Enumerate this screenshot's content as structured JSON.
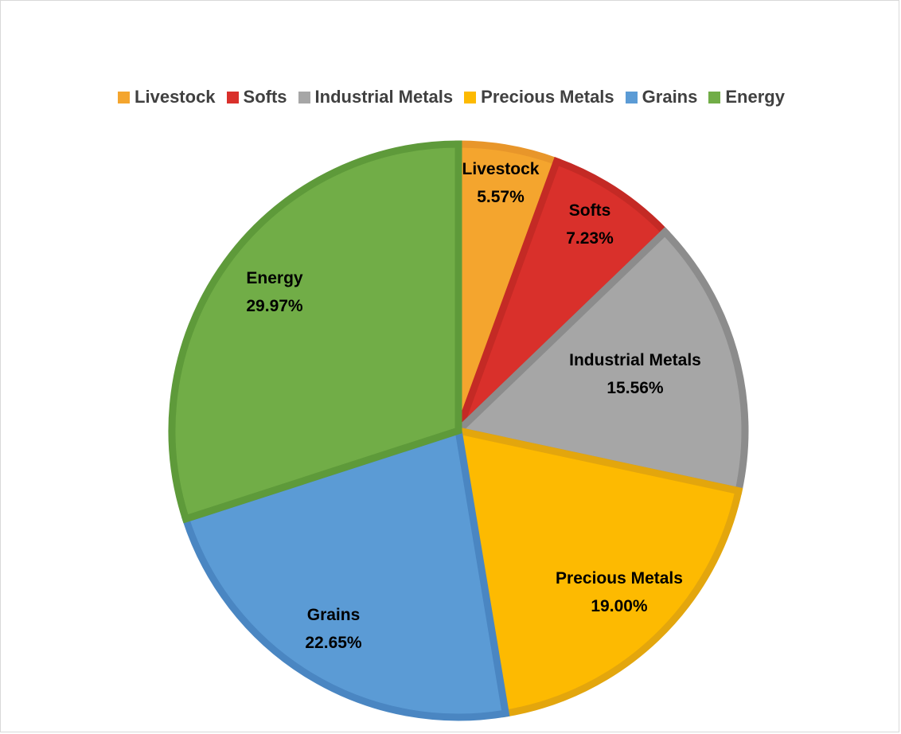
{
  "chart_data": {
    "type": "pie",
    "title": "",
    "legend_position": "top",
    "start_angle_deg": 0,
    "direction": "clockwise",
    "slices": [
      {
        "name": "Livestock",
        "value": 5.57,
        "label": "5.57%",
        "color": "#F4A52E",
        "border": "#E8962A"
      },
      {
        "name": "Softs",
        "value": 7.23,
        "label": "7.23%",
        "color": "#D9302B",
        "border": "#C42A25"
      },
      {
        "name": "Industrial Metals",
        "value": 15.56,
        "label": "15.56%",
        "color": "#A6A6A6",
        "border": "#8C8C8C"
      },
      {
        "name": "Precious Metals",
        "value": 19.0,
        "label": "19.00%",
        "color": "#FDBA01",
        "border": "#E3A60D"
      },
      {
        "name": "Grains",
        "value": 22.65,
        "label": "22.65%",
        "color": "#5B9BD5",
        "border": "#4A86C2"
      },
      {
        "name": "Energy",
        "value": 29.97,
        "label": "29.97%",
        "color": "#71AD47",
        "border": "#5E9A3A"
      }
    ]
  }
}
